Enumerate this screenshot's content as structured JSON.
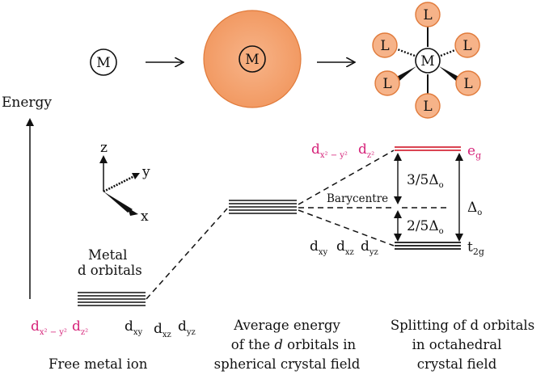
{
  "colors": {
    "accent_pink": "#d6247a",
    "sphere_fill": "#f4a472",
    "sphere_edge": "#e07a3a",
    "ligand_fill": "#f6b389",
    "eg_level": "#d42a3a",
    "ink": "#111111"
  },
  "top_row": {
    "metal_symbol": "M",
    "ligand_symbol": "L"
  },
  "energy_axis": {
    "label": "Energy"
  },
  "axes_glyph": {
    "z": "z",
    "y": "y",
    "x": "x"
  },
  "free_ion": {
    "group_label_line1": "Metal",
    "group_label_line2": "d orbitals",
    "orbitals": {
      "dx2y2_base": "d",
      "dx2y2_sub": "x² − y²",
      "dz2_base": "d",
      "dz2_sub": "z²",
      "dxy_base": "d",
      "dxy_sub": "xy",
      "dxz_base": "d",
      "dxz_sub": "xz",
      "dyz_base": "d",
      "dyz_sub": "yz"
    },
    "caption": "Free metal ion"
  },
  "spherical": {
    "caption_line1": "Average energy",
    "caption_line2_pre": "of the ",
    "caption_line2_italic": "d",
    "caption_line2_post": " orbitals in",
    "caption_line3": "spherical crystal field"
  },
  "octahedral": {
    "barycentre": "Barycentre",
    "upper_gap_frac": "3/5",
    "lower_gap_frac": "2/5",
    "delta_symbol": "Δ",
    "delta_sub": "o",
    "eg_base": "e",
    "eg_sub": "g",
    "t2g_base": "t",
    "t2g_sub": "2g",
    "orbitals_upper": {
      "dx2y2_base": "d",
      "dx2y2_sub": "x² − y²",
      "dz2_base": "d",
      "dz2_sub": "z²"
    },
    "orbitals_lower": {
      "dxy_base": "d",
      "dxy_sub": "xy",
      "dxz_base": "d",
      "dxz_sub": "xz",
      "dyz_base": "d",
      "dyz_sub": "yz"
    },
    "caption_line1": "Splitting of d orbitals",
    "caption_line2": "in octahedral",
    "caption_line3": "crystal field"
  }
}
